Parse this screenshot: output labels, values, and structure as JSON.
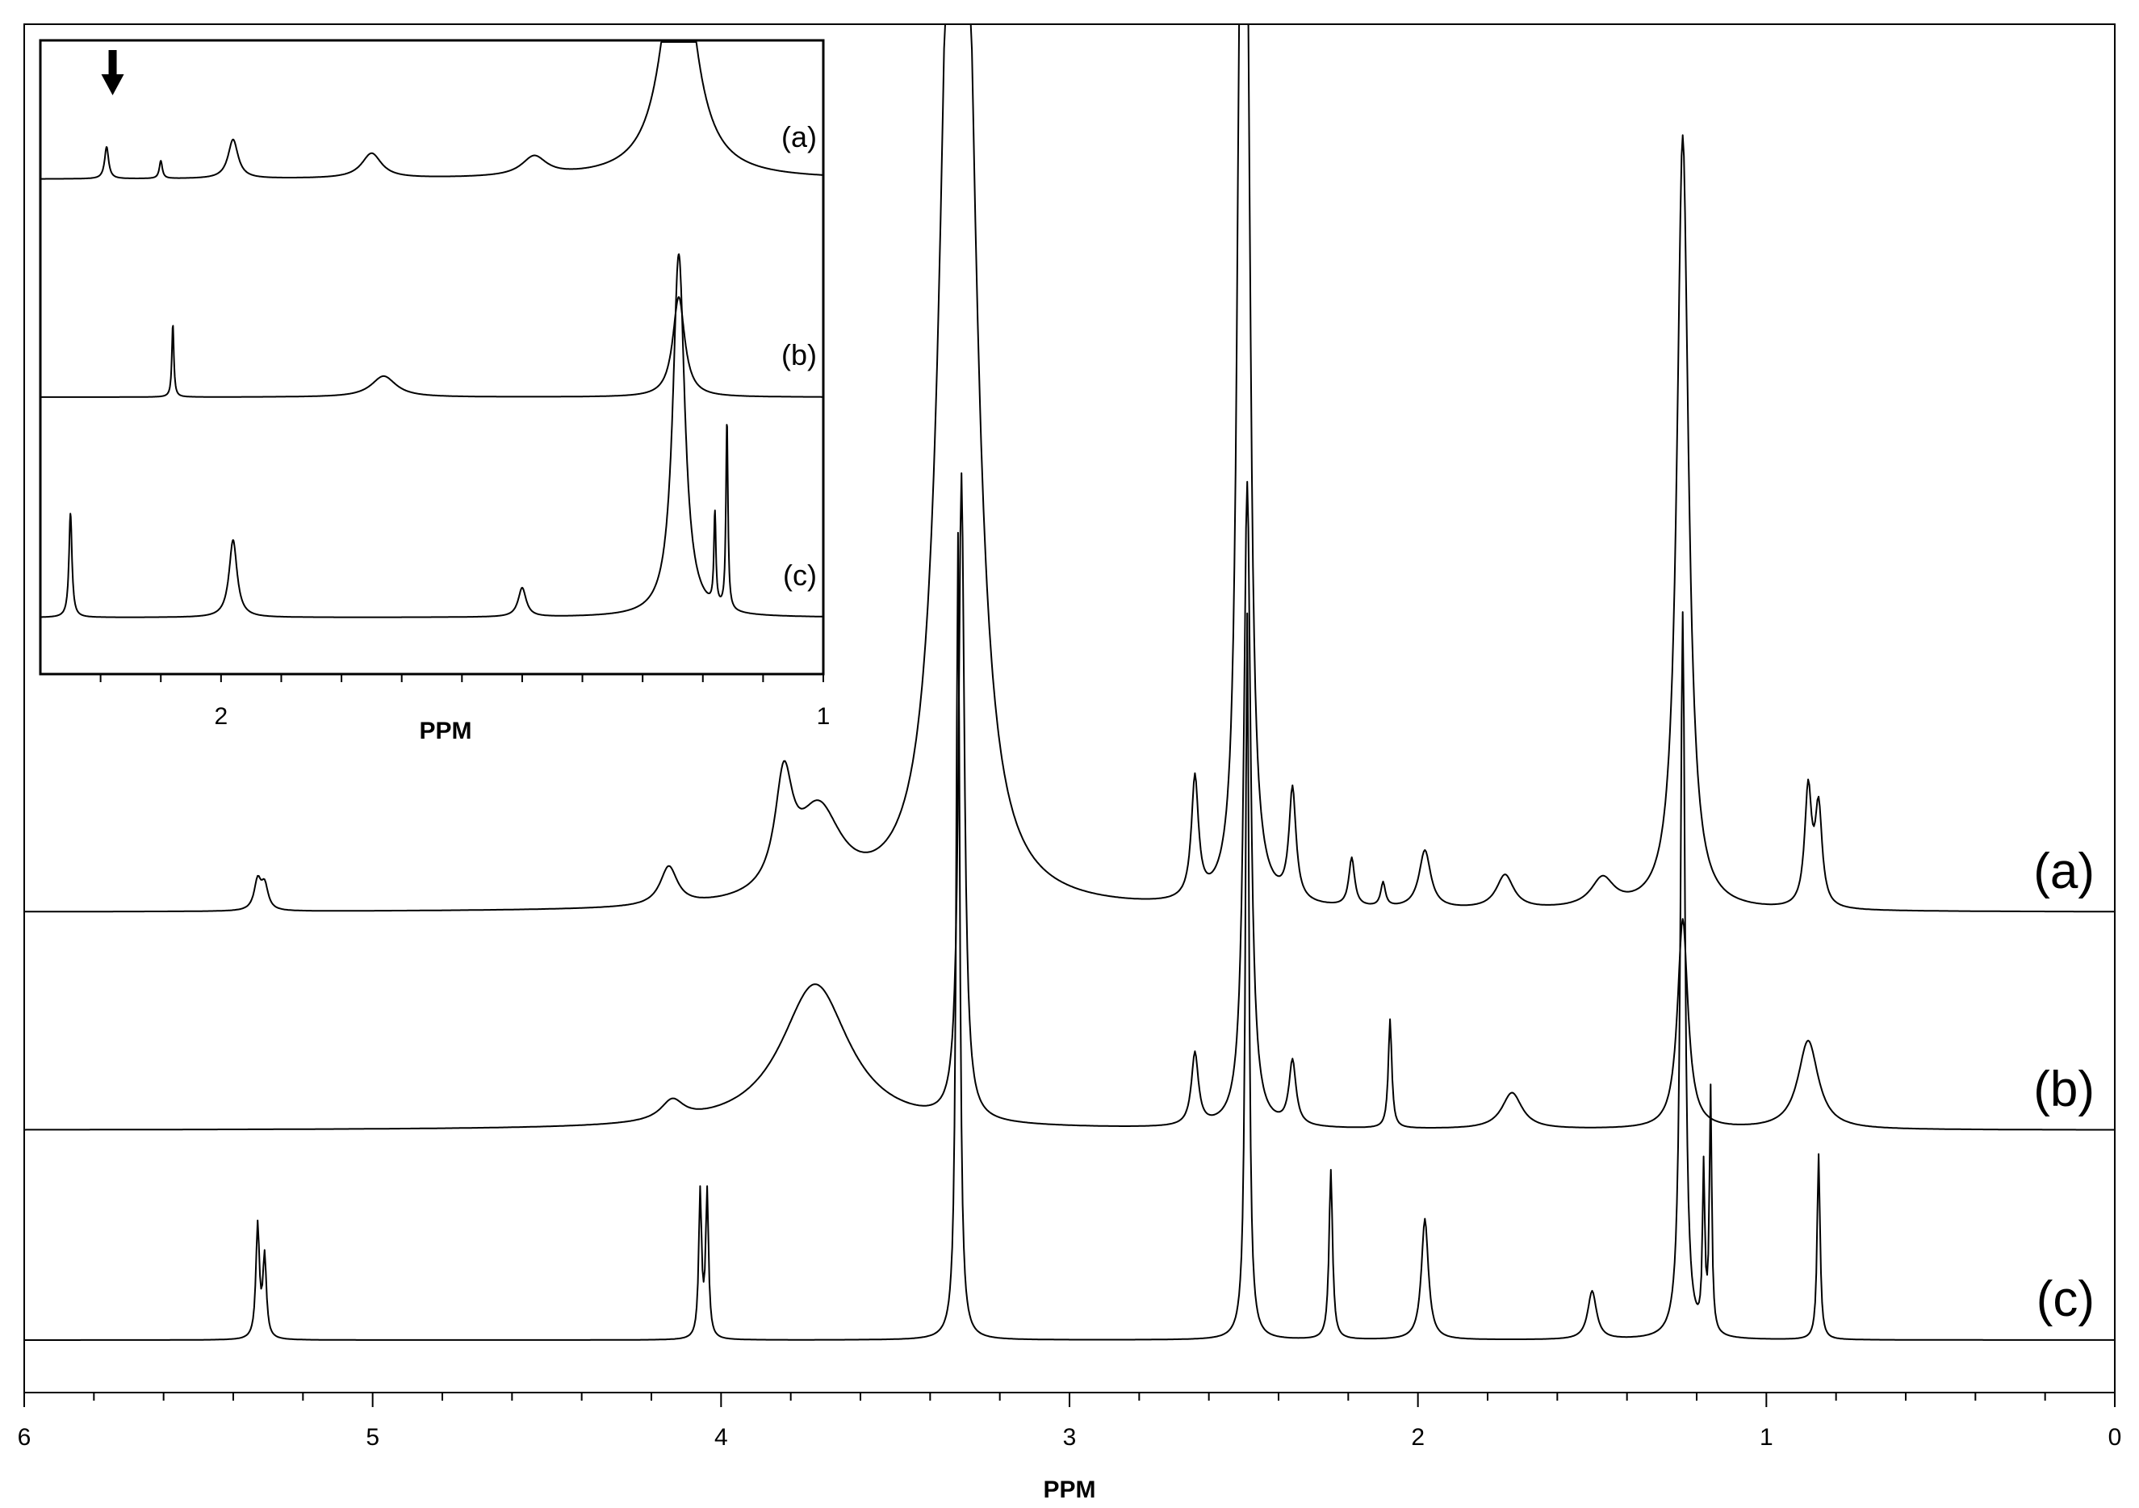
{
  "chart_data": [
    {
      "type": "line",
      "title": "",
      "xlabel": "PPM",
      "ylabel": "",
      "x_axis_reversed": true,
      "xlim": [
        6,
        0
      ],
      "x_ticks": [
        "6",
        "5",
        "4",
        "3",
        "2",
        "1",
        "0"
      ],
      "grid": false,
      "legend": "labels at right end of traces",
      "series": [
        {
          "name": "(a)",
          "baseline": 0,
          "peaks": [
            {
              "ppm": 5.33,
              "height": 0.06,
              "width": 0.012
            },
            {
              "ppm": 5.31,
              "height": 0.05,
              "width": 0.012
            },
            {
              "ppm": 4.15,
              "height": 0.08,
              "width": 0.03
            },
            {
              "ppm": 3.82,
              "height": 0.22,
              "width": 0.03
            },
            {
              "ppm": 3.72,
              "height": 0.18,
              "width": 0.08
            },
            {
              "ppm": 3.34,
              "height": 1.6,
              "width": 0.04
            },
            {
              "ppm": 3.3,
              "height": 1.6,
              "width": 0.04
            },
            {
              "ppm": 2.64,
              "height": 0.25,
              "width": 0.012
            },
            {
              "ppm": 2.51,
              "height": 1.6,
              "width": 0.012
            },
            {
              "ppm": 2.49,
              "height": 1.6,
              "width": 0.012
            },
            {
              "ppm": 2.36,
              "height": 0.23,
              "width": 0.012
            },
            {
              "ppm": 2.19,
              "height": 0.1,
              "width": 0.01
            },
            {
              "ppm": 2.1,
              "height": 0.05,
              "width": 0.008
            },
            {
              "ppm": 1.98,
              "height": 0.12,
              "width": 0.02
            },
            {
              "ppm": 1.75,
              "height": 0.07,
              "width": 0.03
            },
            {
              "ppm": 1.47,
              "height": 0.06,
              "width": 0.04
            },
            {
              "ppm": 1.24,
              "height": 1.6,
              "width": 0.02
            },
            {
              "ppm": 0.88,
              "height": 0.24,
              "width": 0.012
            },
            {
              "ppm": 0.85,
              "height": 0.2,
              "width": 0.012
            }
          ]
        },
        {
          "name": "(b)",
          "baseline": 0,
          "peaks": [
            {
              "ppm": 4.14,
              "height": 0.05,
              "width": 0.04
            },
            {
              "ppm": 3.73,
              "height": 0.36,
              "width": 0.12
            },
            {
              "ppm": 3.31,
              "height": 1.6,
              "width": 0.01
            },
            {
              "ppm": 2.64,
              "height": 0.18,
              "width": 0.012
            },
            {
              "ppm": 2.49,
              "height": 1.6,
              "width": 0.012
            },
            {
              "ppm": 2.36,
              "height": 0.16,
              "width": 0.012
            },
            {
              "ppm": 2.08,
              "height": 0.27,
              "width": 0.006
            },
            {
              "ppm": 1.73,
              "height": 0.09,
              "width": 0.035
            },
            {
              "ppm": 1.24,
              "height": 0.52,
              "width": 0.018
            },
            {
              "ppm": 0.88,
              "height": 0.22,
              "width": 0.035
            }
          ]
        },
        {
          "name": "(c)",
          "baseline": 0,
          "peaks": [
            {
              "ppm": 5.33,
              "height": 0.14,
              "width": 0.006
            },
            {
              "ppm": 5.31,
              "height": 0.1,
              "width": 0.006
            },
            {
              "ppm": 4.06,
              "height": 0.18,
              "width": 0.005
            },
            {
              "ppm": 4.04,
              "height": 0.18,
              "width": 0.005
            },
            {
              "ppm": 3.32,
              "height": 1.0,
              "width": 0.006
            },
            {
              "ppm": 2.49,
              "height": 0.9,
              "width": 0.006
            },
            {
              "ppm": 2.25,
              "height": 0.21,
              "width": 0.006
            },
            {
              "ppm": 1.98,
              "height": 0.15,
              "width": 0.012
            },
            {
              "ppm": 1.5,
              "height": 0.06,
              "width": 0.015
            },
            {
              "ppm": 1.24,
              "height": 0.9,
              "width": 0.008
            },
            {
              "ppm": 1.18,
              "height": 0.2,
              "width": 0.004
            },
            {
              "ppm": 1.16,
              "height": 0.3,
              "width": 0.004
            },
            {
              "ppm": 0.85,
              "height": 0.23,
              "width": 0.005
            }
          ]
        }
      ]
    },
    {
      "type": "line",
      "title": "",
      "xlabel": "PPM",
      "ylabel": "",
      "x_axis_reversed": true,
      "xlim": [
        2.3,
        1
      ],
      "x_ticks": [
        "2",
        "1"
      ],
      "grid": false,
      "legend": "labels at right end of traces",
      "annotations": [
        {
          "type": "arrow",
          "ppm": 2.18
        }
      ],
      "series": [
        {
          "name": "(a)",
          "peaks": [
            {
              "ppm": 2.19,
              "height": 0.18,
              "width": 0.004
            },
            {
              "ppm": 2.1,
              "height": 0.1,
              "width": 0.003
            },
            {
              "ppm": 1.98,
              "height": 0.22,
              "width": 0.01
            },
            {
              "ppm": 1.75,
              "height": 0.14,
              "width": 0.02
            },
            {
              "ppm": 1.48,
              "height": 0.11,
              "width": 0.025
            },
            {
              "ppm": 1.24,
              "height": 1.5,
              "width": 0.03
            }
          ]
        },
        {
          "name": "(b)",
          "peaks": [
            {
              "ppm": 2.08,
              "height": 0.45,
              "width": 0.002
            },
            {
              "ppm": 1.73,
              "height": 0.13,
              "width": 0.025
            },
            {
              "ppm": 1.24,
              "height": 0.62,
              "width": 0.012
            }
          ]
        },
        {
          "name": "(c)",
          "peaks": [
            {
              "ppm": 2.25,
              "height": 0.43,
              "width": 0.003
            },
            {
              "ppm": 1.98,
              "height": 0.32,
              "width": 0.008
            },
            {
              "ppm": 1.5,
              "height": 0.12,
              "width": 0.008
            },
            {
              "ppm": 1.24,
              "height": 1.5,
              "width": 0.012
            },
            {
              "ppm": 1.18,
              "height": 0.38,
              "width": 0.002
            },
            {
              "ppm": 1.16,
              "height": 0.78,
              "width": 0.002
            }
          ]
        }
      ]
    }
  ]
}
